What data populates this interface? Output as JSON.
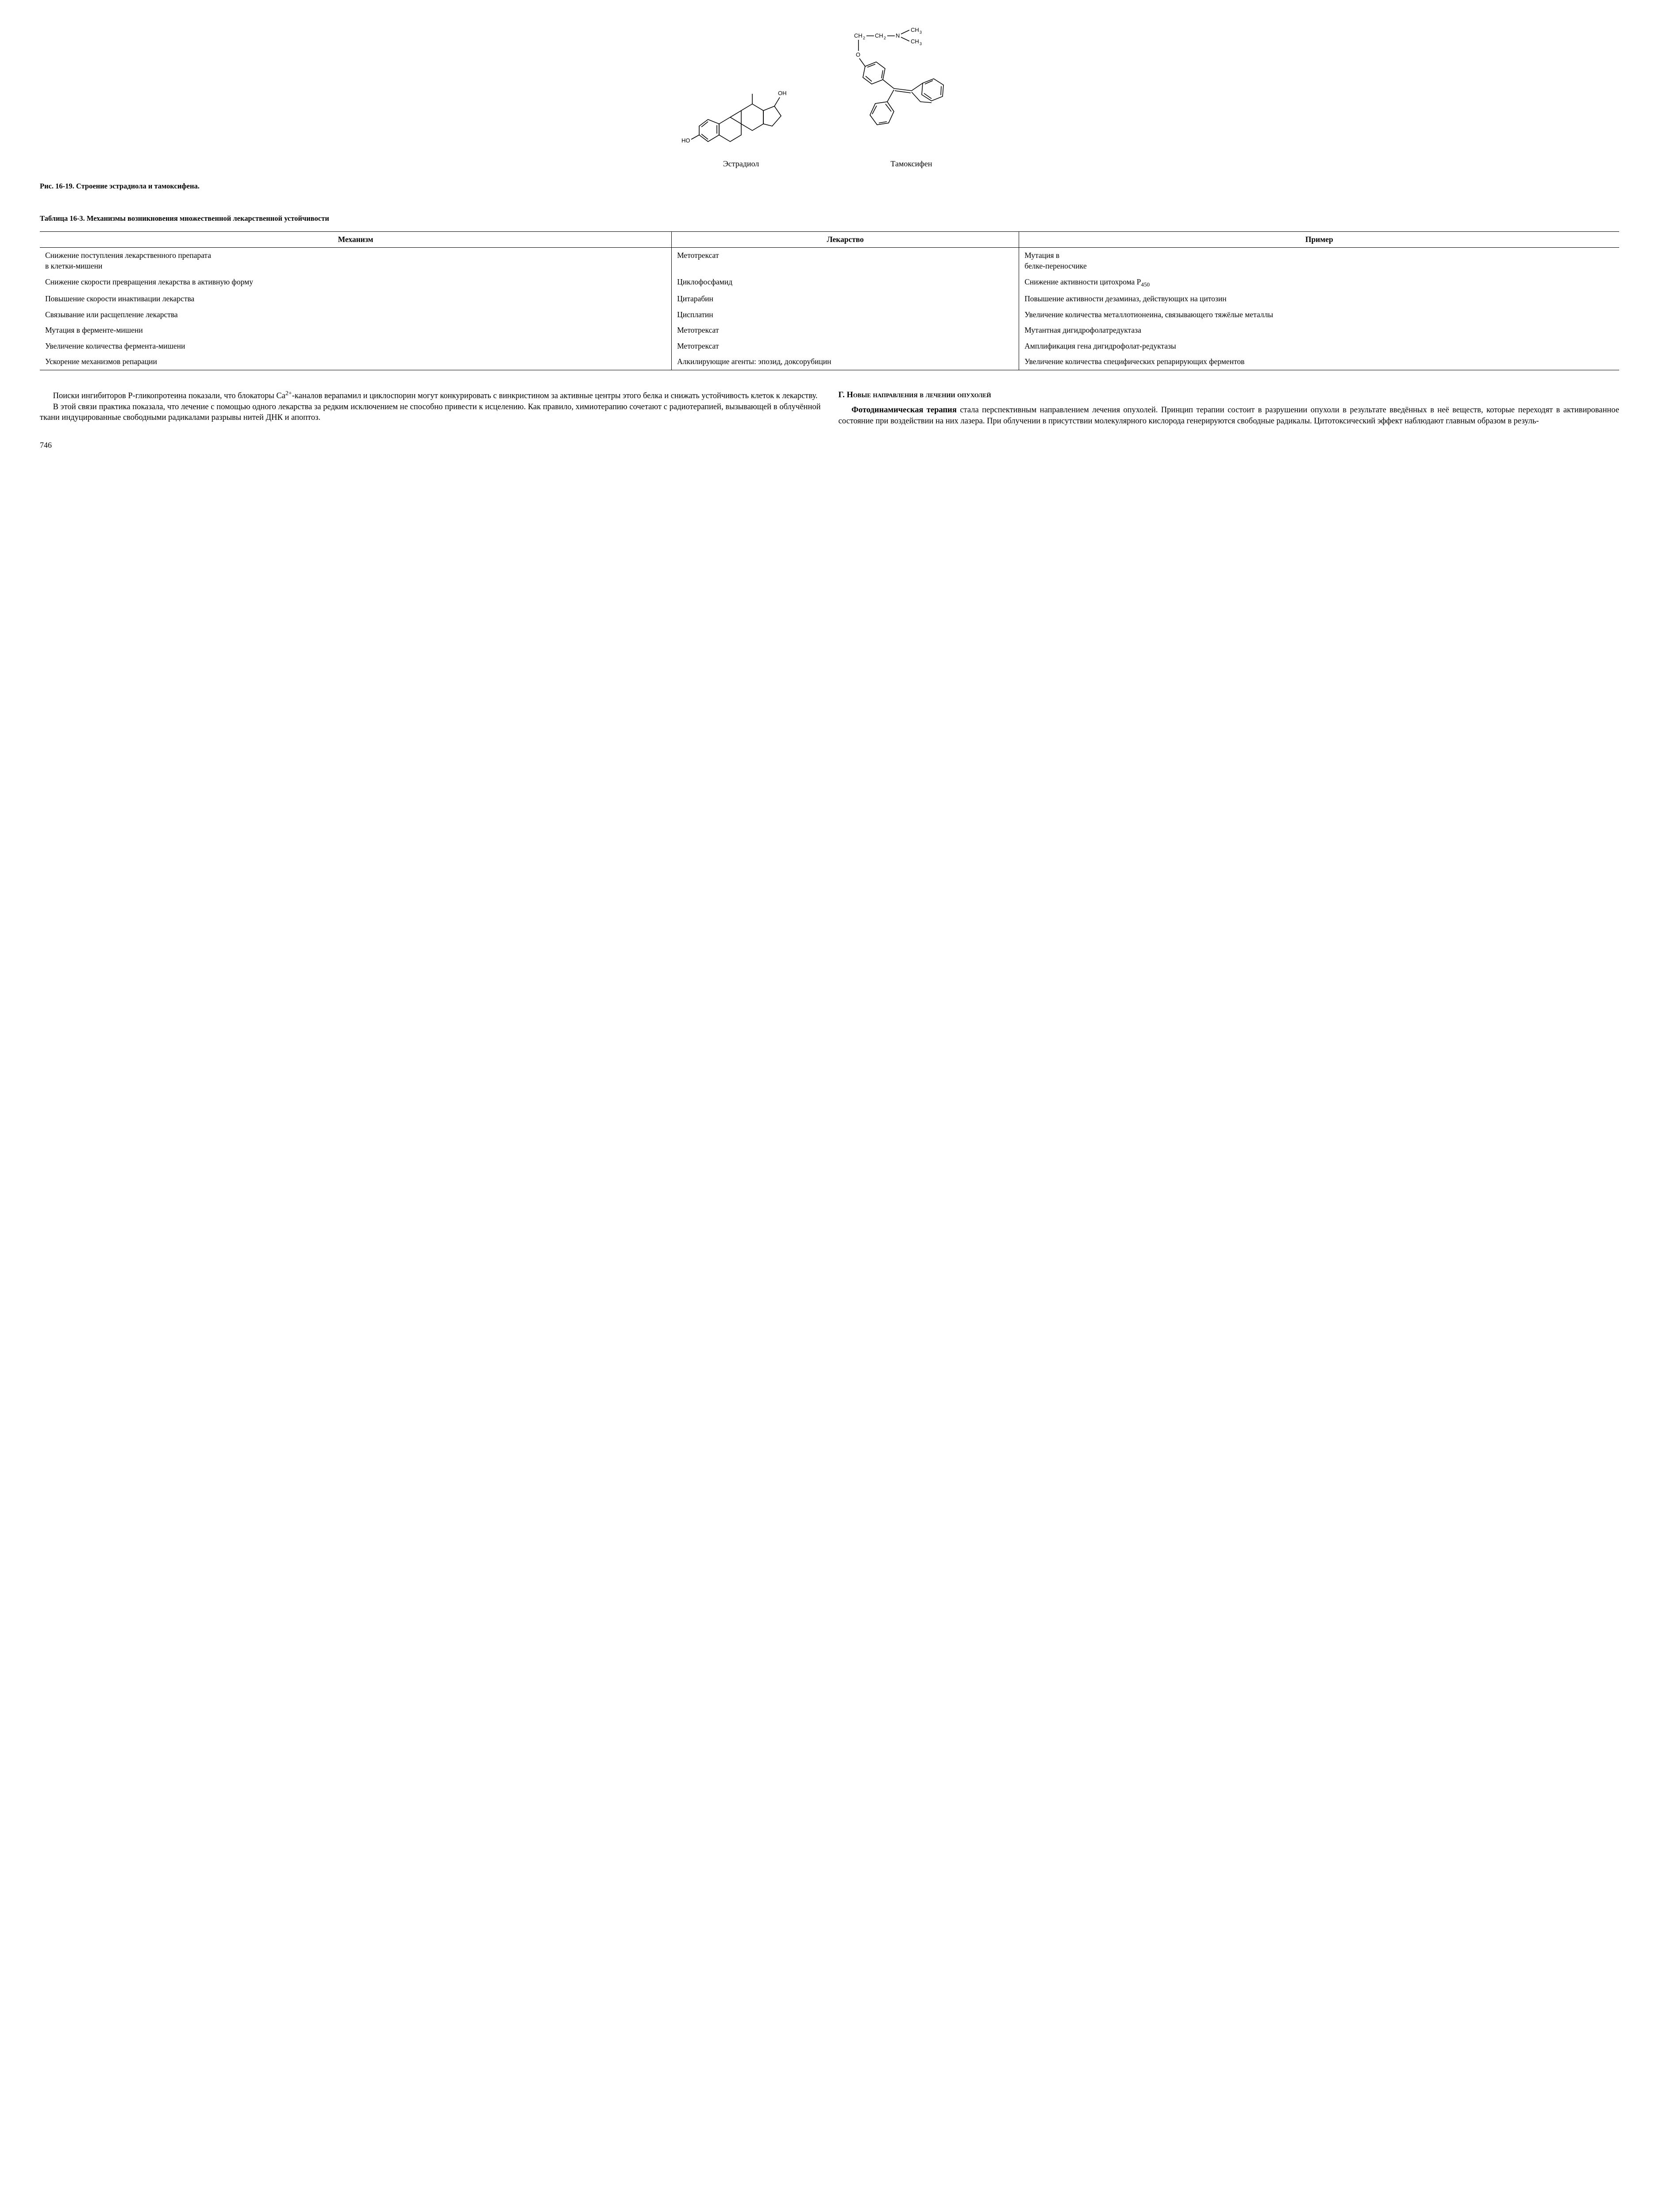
{
  "figure": {
    "estradiol_label": "Эстрадиол",
    "tamoxifen_label": "Тамоксифен",
    "caption": "Рис. 16-19. Строение эстрадиола и тамоксифена.",
    "labels": {
      "OH": "OH",
      "HO": "HO",
      "CH2": "CH",
      "N": "N",
      "CH3": "CH",
      "O": "O",
      "sub2": "2",
      "sub3": "3"
    }
  },
  "table": {
    "caption": "Таблица 16-3. Механизмы возникновения множественной лекарственной устойчивости",
    "headers": [
      "Механизм",
      "Лекарство",
      "Пример"
    ],
    "rows": [
      [
        "Снижение поступления лекарственного препарата\nв клетки-мишени",
        "Метотрексат",
        "Мутация в\nбелке-переносчике"
      ],
      [
        "Снижение скорости превращения лекарства в активную форму",
        "Циклофосфамид",
        "Снижение активности цитохрома P₄₅₀"
      ],
      [
        "Повышение скорости инактивации лекарства",
        "Цитарабин",
        "Повышение активности дезаминаз, действующих на цитозин"
      ],
      [
        "Связывание или расщепление лекарства",
        "Цисплатин",
        "Увеличение количества металлотионеина, связывающего тяжёлые металлы"
      ],
      [
        "Мутация в ферменте-мишени",
        "Метотрексат",
        "Мутантная дигидрофолатредуктаза"
      ],
      [
        "Увеличение количества фермента-мишени",
        "Метотрексат",
        "Амплификация гена дигидрофолат-редуктазы"
      ],
      [
        "Ускорение механизмов репарации",
        "Алкилирующие агенты: эпозид, доксорубицин",
        "Увеличение количества специфических репарирующих ферментов"
      ]
    ]
  },
  "body": {
    "left_p1": "Поиски ингибиторов Р-гликопротеина показали, что блокаторы Ca²⁺-каналов верапамил и циклоспорин могут конкурировать с винкристином за активные центры этого белка и снижать устойчивость клеток к лекарству.",
    "left_p2": "В этой связи практика показала, что лечение с помощью одного лекарства за редким исключением не способно привести к исцелению. Как правило, химиотерапию сочетают с радиотерапией, вызывающей в облучённой ткани индуцированные свободными радикалами разрывы нитей ДНК и апоптоз.",
    "right_heading": "Г. Новые направления в лечении опухолей",
    "right_p1": "Фотодинамическая терапия стала перспективным направлением лечения опухолей. Принцип терапии состоит в разрушении опухоли в результате введённых в неё веществ, которые переходят в активированное состояние при воздействии на них лазера. При облучении в присутствии молекулярного кислорода генерируются свободные радикалы. Цитотоксический эффект наблюдают главным образом в резуль-"
  },
  "page_number": "746"
}
